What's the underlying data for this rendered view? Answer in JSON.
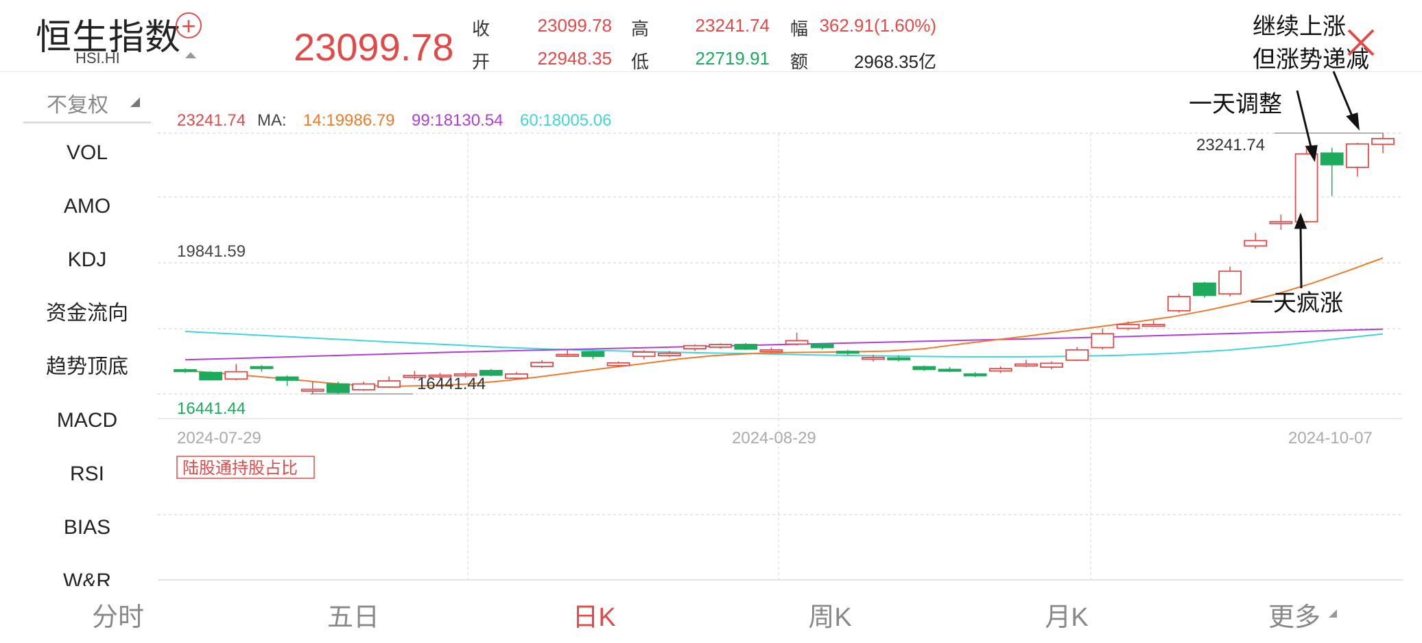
{
  "header": {
    "title": "恒生指数",
    "code": "HSI.HI",
    "price": "23099.78",
    "fields": [
      {
        "label": "收",
        "value": "23099.78",
        "color": "red"
      },
      {
        "label": "开",
        "value": "22948.35",
        "color": "red"
      },
      {
        "label": "高",
        "value": "23241.74",
        "color": "red"
      },
      {
        "label": "低",
        "value": "22719.91",
        "color": "green"
      },
      {
        "label": "幅",
        "value": "362.91(1.60%)",
        "color": "red"
      },
      {
        "label": "额",
        "value": "2968.35亿",
        "color": "dark"
      }
    ]
  },
  "sidebar": {
    "adjust": "不复权",
    "items": [
      "VOL",
      "AMO",
      "KDJ",
      "资金流向",
      "趋势顶底",
      "MACD",
      "RSI",
      "BIAS",
      "W&R"
    ]
  },
  "legend": {
    "price": "23241.74",
    "ma_label": "MA:",
    "ma14": "14:19986.79",
    "ma99": "99:18130.54",
    "ma60": "60:18005.06"
  },
  "tag": "陆股通持股占比",
  "tabs": [
    "分时",
    "五日",
    "日K",
    "周K",
    "月K",
    "更多"
  ],
  "active_tab": "日K",
  "annotations": [
    "继续上涨",
    "但涨势递减",
    "一天调整",
    "一天疯涨"
  ],
  "colors": {
    "up": "#e24a4a",
    "down": "#1eaa5c",
    "ma14": "#f07a2c",
    "ma99": "#b03cde",
    "ma60": "#3ed6d6"
  },
  "chart_data": {
    "type": "candlestick",
    "x_labels": [
      "2024-07-29",
      "2024-08-29",
      "2024-10-07"
    ],
    "y_labels": {
      "high": "23241.74",
      "mid": "19841.59",
      "low": "16441.44"
    },
    "high_mark": "23241.74",
    "low_mark": "16441.44",
    "ylim": [
      16441.44,
      23241.74
    ],
    "candles": [
      {
        "o": 17070,
        "c": 17040,
        "h": 17110,
        "l": 16990
      },
      {
        "o": 17000,
        "c": 16810,
        "h": 17030,
        "l": 16790
      },
      {
        "o": 16830,
        "c": 17020,
        "h": 17220,
        "l": 16800
      },
      {
        "o": 17150,
        "c": 17120,
        "h": 17190,
        "l": 17020
      },
      {
        "o": 16880,
        "c": 16800,
        "h": 16920,
        "l": 16650
      },
      {
        "o": 16560,
        "c": 16560,
        "h": 16760,
        "l": 16441
      },
      {
        "o": 16700,
        "c": 16480,
        "h": 16760,
        "l": 16440
      },
      {
        "o": 16550,
        "c": 16700,
        "h": 16760,
        "l": 16520
      },
      {
        "o": 16620,
        "c": 16780,
        "h": 16900,
        "l": 16600
      },
      {
        "o": 16900,
        "c": 16920,
        "h": 17040,
        "l": 16820
      },
      {
        "o": 16900,
        "c": 16930,
        "h": 16990,
        "l": 16830
      },
      {
        "o": 16920,
        "c": 16960,
        "h": 17010,
        "l": 16860
      },
      {
        "o": 17050,
        "c": 16930,
        "h": 17090,
        "l": 16900
      },
      {
        "o": 16850,
        "c": 16960,
        "h": 17010,
        "l": 16820
      },
      {
        "o": 17160,
        "c": 17260,
        "h": 17320,
        "l": 17120
      },
      {
        "o": 17460,
        "c": 17470,
        "h": 17590,
        "l": 17400
      },
      {
        "o": 17540,
        "c": 17420,
        "h": 17570,
        "l": 17350
      },
      {
        "o": 17180,
        "c": 17250,
        "h": 17290,
        "l": 17140
      },
      {
        "o": 17420,
        "c": 17530,
        "h": 17580,
        "l": 17350
      },
      {
        "o": 17440,
        "c": 17500,
        "h": 17560,
        "l": 17400
      },
      {
        "o": 17620,
        "c": 17700,
        "h": 17730,
        "l": 17560
      },
      {
        "o": 17660,
        "c": 17730,
        "h": 17760,
        "l": 17620
      },
      {
        "o": 17730,
        "c": 17610,
        "h": 17770,
        "l": 17590
      },
      {
        "o": 17550,
        "c": 17590,
        "h": 17650,
        "l": 17510
      },
      {
        "o": 17740,
        "c": 17830,
        "h": 18040,
        "l": 17700
      },
      {
        "o": 17740,
        "c": 17650,
        "h": 17770,
        "l": 17600
      },
      {
        "o": 17550,
        "c": 17510,
        "h": 17590,
        "l": 17450
      },
      {
        "o": 17380,
        "c": 17390,
        "h": 17460,
        "l": 17290
      },
      {
        "o": 17380,
        "c": 17370,
        "h": 17440,
        "l": 17290
      },
      {
        "o": 17150,
        "c": 17080,
        "h": 17180,
        "l": 17040
      },
      {
        "o": 17080,
        "c": 17050,
        "h": 17140,
        "l": 17010
      },
      {
        "o": 16960,
        "c": 16920,
        "h": 17010,
        "l": 16880
      },
      {
        "o": 17040,
        "c": 17100,
        "h": 17160,
        "l": 16990
      },
      {
        "o": 17170,
        "c": 17220,
        "h": 17330,
        "l": 17140
      },
      {
        "o": 17140,
        "c": 17240,
        "h": 17290,
        "l": 17080
      },
      {
        "o": 17320,
        "c": 17590,
        "h": 17660,
        "l": 17300
      },
      {
        "o": 17650,
        "c": 18010,
        "h": 18150,
        "l": 17600
      },
      {
        "o": 18150,
        "c": 18250,
        "h": 18330,
        "l": 18100
      },
      {
        "o": 18240,
        "c": 18250,
        "h": 18360,
        "l": 18190
      },
      {
        "o": 18610,
        "c": 18980,
        "h": 19050,
        "l": 18560
      },
      {
        "o": 19330,
        "c": 19010,
        "h": 19360,
        "l": 18950
      },
      {
        "o": 19050,
        "c": 19640,
        "h": 19760,
        "l": 18980
      },
      {
        "o": 20300,
        "c": 20440,
        "h": 20640,
        "l": 20230
      },
      {
        "o": 20930,
        "c": 20930,
        "h": 21120,
        "l": 20720
      },
      {
        "o": 20930,
        "c": 22700,
        "h": 22840,
        "l": 20900
      },
      {
        "o": 22720,
        "c": 22420,
        "h": 22860,
        "l": 21600
      },
      {
        "o": 22350,
        "c": 22960,
        "h": 22990,
        "l": 22110
      },
      {
        "o": 22950,
        "c": 23100,
        "h": 23242,
        "l": 22720
      }
    ],
    "ma14": [
      17050,
      16980,
      16900,
      16820,
      16730,
      16660,
      16640,
      16660,
      16700,
      16780,
      16880,
      17000,
      17120,
      17230,
      17350,
      17440,
      17490,
      17520,
      17530,
      17540,
      17560,
      17620,
      17740,
      17850,
      17960,
      18080,
      18200,
      18320,
      18450,
      18620,
      18820,
      19050,
      19330,
      19650,
      19987
    ],
    "ma99": [
      17330,
      17380,
      17430,
      17480,
      17530,
      17570,
      17610,
      17650,
      17690,
      17730,
      17770,
      17810,
      17850,
      17890,
      17930,
      17980,
      18030,
      18080,
      18130
    ],
    "ma60": [
      18070,
      18000,
      17930,
      17860,
      17790,
      17730,
      17660,
      17610,
      17570,
      17540,
      17510,
      17490,
      17460,
      17440,
      17420,
      17410,
      17410,
      17420,
      17450,
      17500,
      17580,
      17700,
      17860,
      18005
    ]
  }
}
